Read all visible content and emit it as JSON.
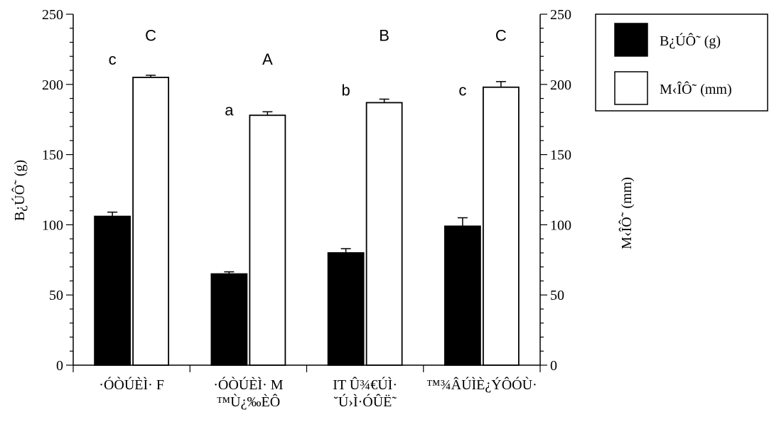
{
  "chart_data": {
    "type": "bar",
    "categories": [
      [
        "·ÓÒÚÈÌ· F"
      ],
      [
        "·ÓÒÚÈÌ· M",
        "™Ù¿‰ÈÔ"
      ],
      [
        "IT Û¾€ÚÌ·",
        "˘Ú›Ì·ÓÛË˜"
      ],
      [
        "™¾ÂÚÌÈ¿ÝÔÓÙ·"
      ]
    ],
    "ylabel_left": "B¿ÚÔ˜ (g)",
    "ylabel_right": "M‹ÎÔ˜ (mm)",
    "ylim": [
      0,
      250
    ],
    "yticks": [
      0,
      50,
      100,
      150,
      200,
      250
    ],
    "series": [
      {
        "name": "B¿ÚÔ˜ (g)",
        "color": "#000000",
        "values": [
          106,
          65,
          80,
          99
        ],
        "errors": [
          3,
          1.5,
          3,
          6
        ],
        "letters": [
          "c",
          "a",
          "b",
          "c"
        ],
        "letter_y": [
          218,
          182,
          196,
          196
        ]
      },
      {
        "name": "M‹ÎÔ˜ (mm)",
        "color": "#ffffff",
        "values": [
          205,
          178,
          187,
          198
        ],
        "errors": [
          1.5,
          2.5,
          2.5,
          4
        ],
        "letters": [
          "C",
          "A",
          "B",
          "C"
        ],
        "letter_y": [
          235,
          218,
          235,
          235
        ]
      }
    ],
    "legend_position": "top-right"
  }
}
